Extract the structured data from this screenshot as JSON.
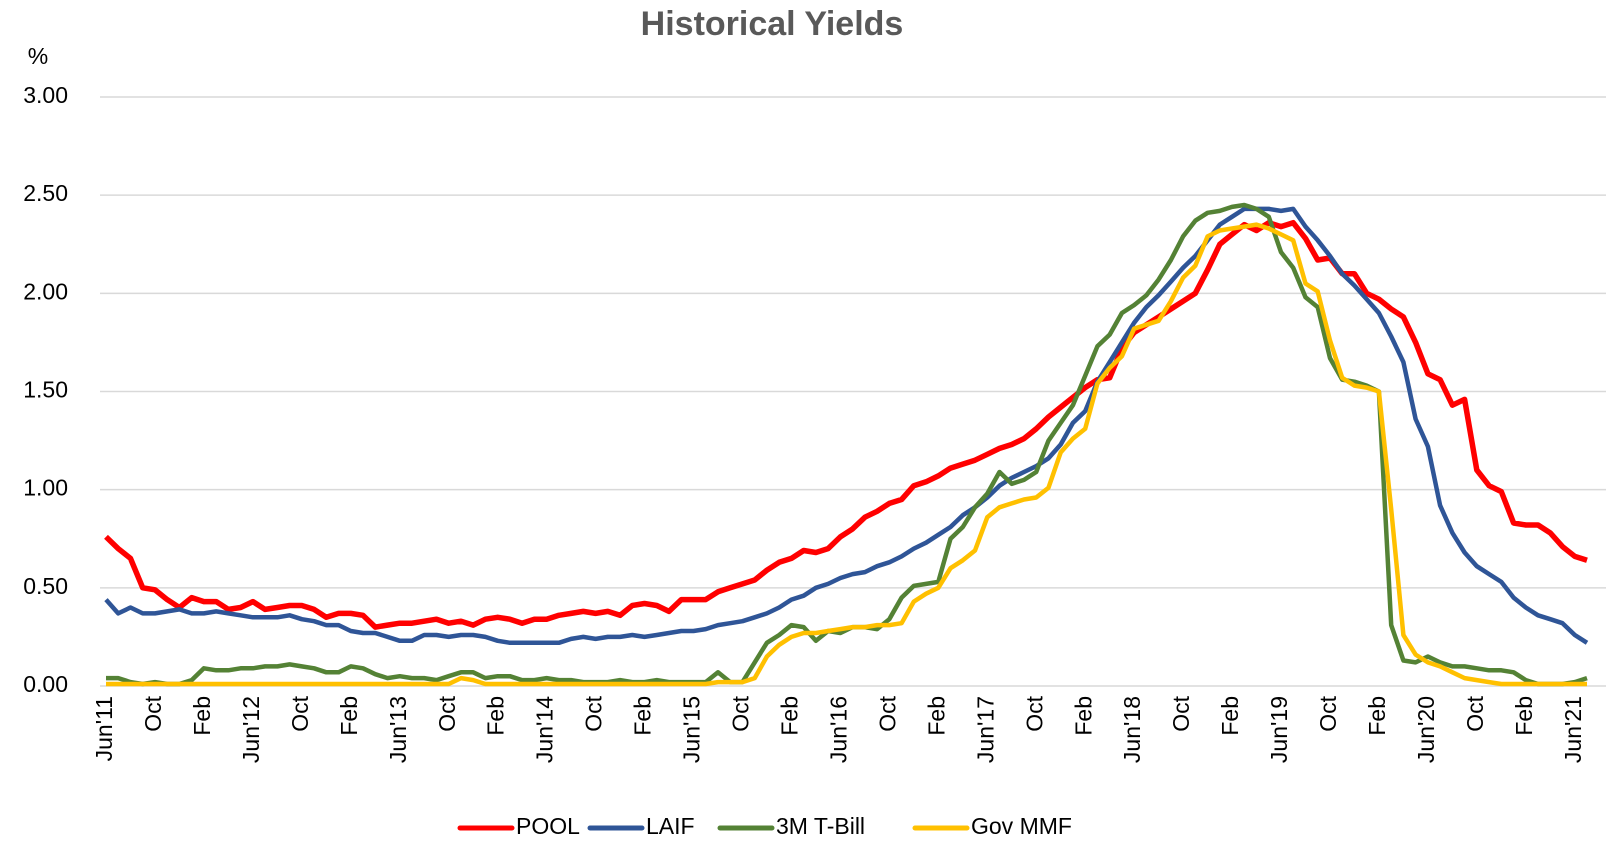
{
  "chart_data": {
    "type": "line",
    "title": "Historical Yields",
    "y_label": "%",
    "categories": [
      "Jun'11",
      null,
      null,
      null,
      "Oct",
      null,
      null,
      null,
      "Feb",
      null,
      null,
      null,
      "Jun'12",
      null,
      null,
      null,
      "Oct",
      null,
      null,
      null,
      "Feb",
      null,
      null,
      null,
      "Jun'13",
      null,
      null,
      null,
      "Oct",
      null,
      null,
      null,
      "Feb",
      null,
      null,
      null,
      "Jun'14",
      null,
      null,
      null,
      "Oct",
      null,
      null,
      null,
      "Feb",
      null,
      null,
      null,
      "Jun'15",
      null,
      null,
      null,
      "Oct",
      null,
      null,
      null,
      "Feb",
      null,
      null,
      null,
      "Jun'16",
      null,
      null,
      null,
      "Oct",
      null,
      null,
      null,
      "Feb",
      null,
      null,
      null,
      "Jun'17",
      null,
      null,
      null,
      "Oct",
      null,
      null,
      null,
      "Feb",
      null,
      null,
      null,
      "Jun'18",
      null,
      null,
      null,
      "Oct",
      null,
      null,
      null,
      "Feb",
      null,
      null,
      null,
      "Jun'19",
      null,
      null,
      null,
      "Oct",
      null,
      null,
      null,
      "Feb",
      null,
      null,
      null,
      "Jun'20",
      null,
      null,
      null,
      "Oct",
      null,
      null,
      null,
      "Feb",
      null,
      null,
      null,
      "Jun'21",
      null
    ],
    "series": [
      {
        "name": "POOL",
        "color": "#ff0000",
        "values": [
          0.76,
          0.7,
          0.65,
          0.5,
          0.49,
          0.44,
          0.4,
          0.45,
          0.43,
          0.43,
          0.39,
          0.4,
          0.43,
          0.39,
          0.4,
          0.41,
          0.41,
          0.39,
          0.35,
          0.37,
          0.37,
          0.36,
          0.3,
          0.31,
          0.32,
          0.32,
          0.33,
          0.34,
          0.32,
          0.33,
          0.31,
          0.34,
          0.35,
          0.34,
          0.32,
          0.34,
          0.34,
          0.36,
          0.37,
          0.38,
          0.37,
          0.38,
          0.36,
          0.41,
          0.42,
          0.41,
          0.38,
          0.44,
          0.44,
          0.44,
          0.48,
          0.5,
          0.52,
          0.54,
          0.59,
          0.63,
          0.65,
          0.69,
          0.68,
          0.7,
          0.76,
          0.8,
          0.86,
          0.89,
          0.93,
          0.95,
          1.02,
          1.04,
          1.07,
          1.11,
          1.13,
          1.15,
          1.18,
          1.21,
          1.23,
          1.26,
          1.31,
          1.37,
          1.42,
          1.47,
          1.52,
          1.56,
          1.57,
          1.72,
          1.8,
          1.84,
          1.88,
          1.92,
          1.96,
          2.0,
          2.12,
          2.25,
          2.3,
          2.35,
          2.32,
          2.36,
          2.34,
          2.36,
          2.28,
          2.17,
          2.18,
          2.1,
          2.1,
          2.0,
          1.97,
          1.92,
          1.88,
          1.75,
          1.59,
          1.56,
          1.43,
          1.46,
          1.1,
          1.02,
          0.99,
          0.83,
          0.82,
          0.82,
          0.78,
          0.71,
          0.66,
          0.64
        ]
      },
      {
        "name": "LAIF",
        "color": "#2f5597",
        "values": [
          0.44,
          0.37,
          0.4,
          0.37,
          0.37,
          0.38,
          0.39,
          0.37,
          0.37,
          0.38,
          0.37,
          0.36,
          0.35,
          0.35,
          0.35,
          0.36,
          0.34,
          0.33,
          0.31,
          0.31,
          0.28,
          0.27,
          0.27,
          0.25,
          0.23,
          0.23,
          0.26,
          0.26,
          0.25,
          0.26,
          0.26,
          0.25,
          0.23,
          0.22,
          0.22,
          0.22,
          0.22,
          0.22,
          0.24,
          0.25,
          0.24,
          0.25,
          0.25,
          0.26,
          0.25,
          0.26,
          0.27,
          0.28,
          0.28,
          0.29,
          0.31,
          0.32,
          0.33,
          0.35,
          0.37,
          0.4,
          0.44,
          0.46,
          0.5,
          0.52,
          0.55,
          0.57,
          0.58,
          0.61,
          0.63,
          0.66,
          0.7,
          0.73,
          0.77,
          0.81,
          0.87,
          0.91,
          0.96,
          1.02,
          1.06,
          1.09,
          1.12,
          1.16,
          1.23,
          1.34,
          1.4,
          1.55,
          1.65,
          1.75,
          1.85,
          1.93,
          1.99,
          2.06,
          2.13,
          2.19,
          2.27,
          2.35,
          2.39,
          2.43,
          2.43,
          2.43,
          2.42,
          2.43,
          2.34,
          2.27,
          2.19,
          2.1,
          2.04,
          1.97,
          1.9,
          1.78,
          1.65,
          1.36,
          1.22,
          0.92,
          0.78,
          0.68,
          0.61,
          0.57,
          0.53,
          0.45,
          0.4,
          0.36,
          0.34,
          0.32,
          0.26,
          0.22
        ]
      },
      {
        "name": "3M T-Bill",
        "color": "#548235",
        "values": [
          0.04,
          0.04,
          0.02,
          0.01,
          0.02,
          0.01,
          0.01,
          0.03,
          0.09,
          0.08,
          0.08,
          0.09,
          0.09,
          0.1,
          0.1,
          0.11,
          0.1,
          0.09,
          0.07,
          0.07,
          0.1,
          0.09,
          0.06,
          0.04,
          0.05,
          0.04,
          0.04,
          0.03,
          0.05,
          0.07,
          0.07,
          0.04,
          0.05,
          0.05,
          0.03,
          0.03,
          0.04,
          0.03,
          0.03,
          0.02,
          0.02,
          0.02,
          0.03,
          0.02,
          0.02,
          0.03,
          0.02,
          0.02,
          0.02,
          0.02,
          0.07,
          0.02,
          0.02,
          0.12,
          0.22,
          0.26,
          0.31,
          0.3,
          0.23,
          0.28,
          0.27,
          0.3,
          0.3,
          0.29,
          0.34,
          0.45,
          0.51,
          0.52,
          0.53,
          0.75,
          0.81,
          0.91,
          0.98,
          1.09,
          1.03,
          1.05,
          1.09,
          1.25,
          1.34,
          1.43,
          1.58,
          1.73,
          1.79,
          1.9,
          1.94,
          1.99,
          2.07,
          2.17,
          2.29,
          2.37,
          2.41,
          2.42,
          2.44,
          2.45,
          2.43,
          2.39,
          2.21,
          2.13,
          1.98,
          1.93,
          1.67,
          1.56,
          1.55,
          1.53,
          1.5,
          0.31,
          0.13,
          0.12,
          0.15,
          0.12,
          0.1,
          0.1,
          0.09,
          0.08,
          0.08,
          0.07,
          0.03,
          0.01,
          0.01,
          0.01,
          0.02,
          0.04
        ]
      },
      {
        "name": "Gov MMF",
        "color": "#ffc000",
        "values": [
          0.01,
          0.01,
          0.01,
          0.01,
          0.01,
          0.01,
          0.01,
          0.01,
          0.01,
          0.01,
          0.01,
          0.01,
          0.01,
          0.01,
          0.01,
          0.01,
          0.01,
          0.01,
          0.01,
          0.01,
          0.01,
          0.01,
          0.01,
          0.01,
          0.01,
          0.01,
          0.01,
          0.01,
          0.01,
          0.04,
          0.03,
          0.01,
          0.01,
          0.01,
          0.01,
          0.01,
          0.01,
          0.01,
          0.01,
          0.01,
          0.01,
          0.01,
          0.01,
          0.01,
          0.01,
          0.01,
          0.01,
          0.01,
          0.01,
          0.01,
          0.02,
          0.02,
          0.02,
          0.04,
          0.15,
          0.21,
          0.25,
          0.27,
          0.27,
          0.28,
          0.29,
          0.3,
          0.3,
          0.31,
          0.31,
          0.32,
          0.43,
          0.47,
          0.5,
          0.6,
          0.64,
          0.69,
          0.86,
          0.91,
          0.93,
          0.95,
          0.96,
          1.01,
          1.19,
          1.26,
          1.31,
          1.54,
          1.62,
          1.68,
          1.82,
          1.84,
          1.86,
          1.96,
          2.08,
          2.14,
          2.29,
          2.32,
          2.33,
          2.34,
          2.35,
          2.33,
          2.3,
          2.27,
          2.05,
          2.01,
          1.76,
          1.57,
          1.53,
          1.52,
          1.5,
          0.9,
          0.26,
          0.16,
          0.12,
          0.1,
          0.07,
          0.04,
          0.03,
          0.02,
          0.01,
          0.01,
          0.01,
          0.01,
          0.01,
          0.01,
          0.01,
          0.01
        ]
      }
    ],
    "ylim": [
      0,
      3
    ],
    "yticks": [
      {
        "value": 0,
        "label": "0.00"
      },
      {
        "value": 0.5,
        "label": "0.50"
      },
      {
        "value": 1,
        "label": "1.00"
      },
      {
        "value": 1.5,
        "label": "1.50"
      },
      {
        "value": 2,
        "label": "2.00"
      },
      {
        "value": 2.5,
        "label": "2.50"
      },
      {
        "value": 3,
        "label": "3.00"
      }
    ],
    "grid": true,
    "legend": "bottom"
  }
}
